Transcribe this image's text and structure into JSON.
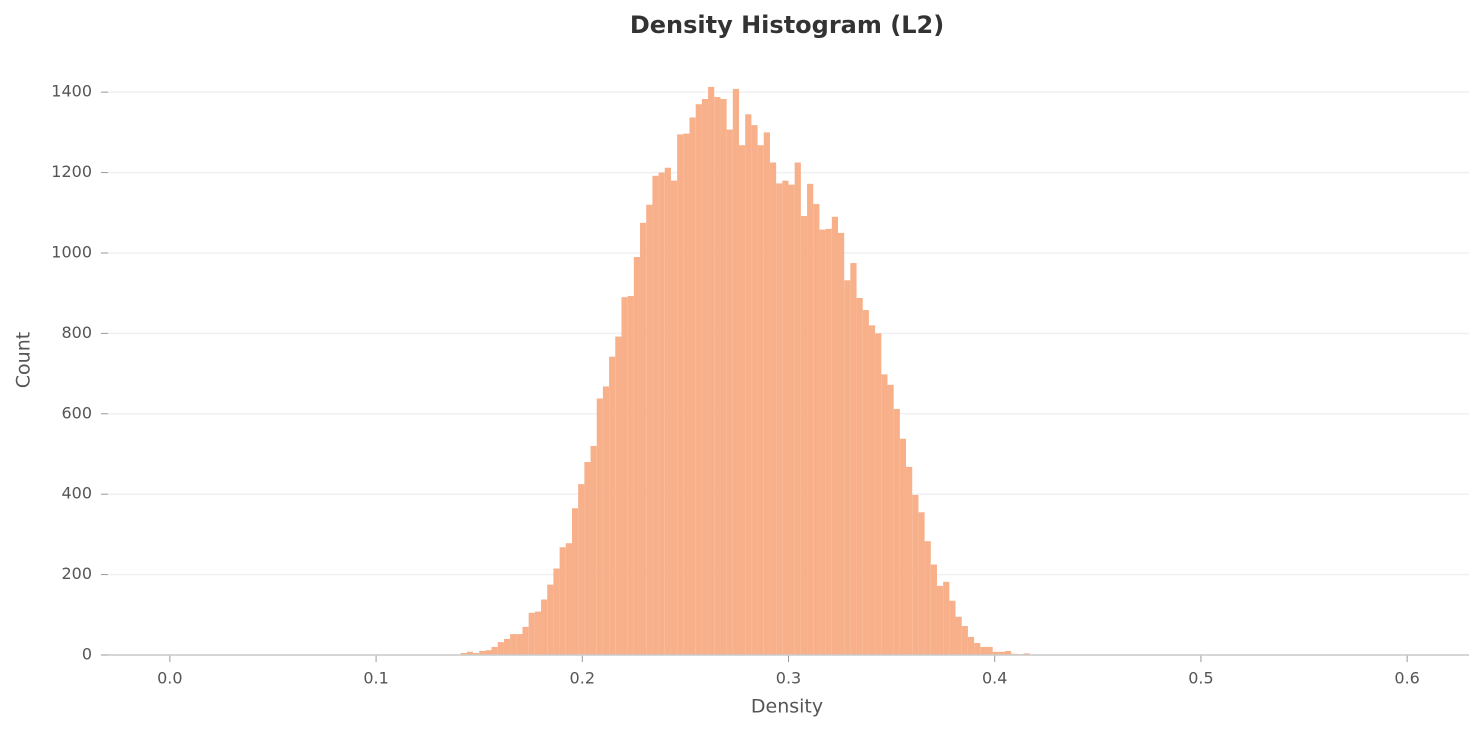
{
  "chart_data": {
    "type": "histogram",
    "title": "Density Histogram (L2)",
    "x_label": "Density",
    "y_label": "Count",
    "color": "#f7b089",
    "grid": true,
    "bins": [
      0.141,
      0.144,
      0.147,
      0.15,
      0.153,
      0.156,
      0.159,
      0.162,
      0.165,
      0.168,
      0.171,
      0.174,
      0.177,
      0.18,
      0.183,
      0.186,
      0.189,
      0.192,
      0.195,
      0.198,
      0.201,
      0.204,
      0.207,
      0.21,
      0.213,
      0.216,
      0.219,
      0.222,
      0.225,
      0.228,
      0.231,
      0.234,
      0.237,
      0.24,
      0.243,
      0.246,
      0.249,
      0.252,
      0.255,
      0.258,
      0.261,
      0.264,
      0.267,
      0.27,
      0.273,
      0.276,
      0.279,
      0.282,
      0.285,
      0.288,
      0.291,
      0.294,
      0.297,
      0.3,
      0.303,
      0.306,
      0.309,
      0.312,
      0.315,
      0.318,
      0.321,
      0.324,
      0.327,
      0.33,
      0.333,
      0.336,
      0.339,
      0.342,
      0.345,
      0.348,
      0.351,
      0.354,
      0.357,
      0.36,
      0.363,
      0.366,
      0.369,
      0.372,
      0.375,
      0.378,
      0.381,
      0.384,
      0.387,
      0.39,
      0.393,
      0.396,
      0.399,
      0.402,
      0.405,
      0.408,
      0.411,
      0.414,
      0.417,
      0.42,
      0.423
    ],
    "counts": [
      5,
      8,
      5,
      10,
      12,
      20,
      32,
      40,
      52,
      52,
      70,
      105,
      108,
      138,
      175,
      215,
      268,
      278,
      365,
      425,
      480,
      520,
      638,
      668,
      742,
      792,
      890,
      893,
      990,
      1075,
      1120,
      1192,
      1200,
      1212,
      1180,
      1295,
      1297,
      1337,
      1370,
      1383,
      1413,
      1388,
      1383,
      1307,
      1408,
      1268,
      1345,
      1318,
      1268,
      1300,
      1225,
      1173,
      1180,
      1170,
      1225,
      1092,
      1172,
      1122,
      1058,
      1060,
      1090,
      1050,
      932,
      975,
      888,
      858,
      820,
      800,
      698,
      672,
      612,
      538,
      468,
      398,
      355,
      283,
      225,
      172,
      182,
      135,
      95,
      72,
      45,
      30,
      20,
      20,
      8,
      8,
      10,
      3,
      2,
      4,
      1,
      1
    ],
    "xlim": [
      -0.03,
      0.63
    ],
    "ylim": [
      0,
      1480
    ],
    "xticks": [
      {
        "value": 0,
        "label": "0.0"
      },
      0.1,
      0.2,
      0.3,
      0.4,
      0.5,
      0.6
    ],
    "yticks": [
      0,
      200,
      400,
      600,
      800,
      1000,
      1200,
      1400
    ]
  }
}
